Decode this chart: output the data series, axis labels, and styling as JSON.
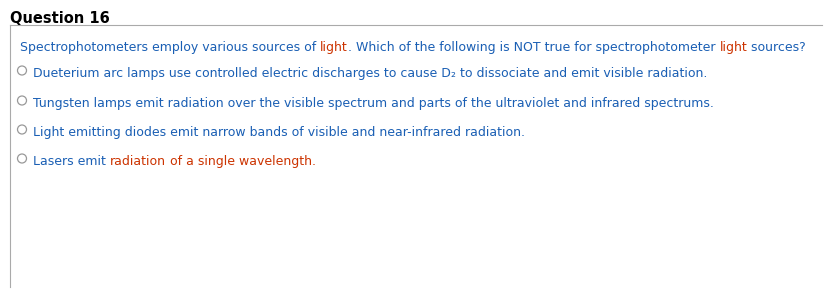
{
  "title": "Question 16",
  "bg_color": "#ffffff",
  "title_color": "#000000",
  "title_fontsize": 10.5,
  "border_color": "#aaaaaa",
  "blue_color": "#1a5fb4",
  "red_color": "#cc3300",
  "dark_blue": "#1a3a8a",
  "font_family": "DejaVu Sans",
  "option_fontsize": 9.0,
  "question_fontsize": 9.0,
  "q_segments": [
    [
      "Spectrophotometers employ various sources of ",
      "#1a5fb4"
    ],
    [
      "light",
      "#cc3300"
    ],
    [
      ". Which of the following is NOT true for spectrophotometer ",
      "#1a5fb4"
    ],
    [
      "light",
      "#cc3300"
    ],
    [
      " sources?",
      "#1a5fb4"
    ]
  ],
  "options": [
    [
      [
        "Dueterium arc lamps use controlled electric discharges to cause D",
        "#1a5fb4"
      ],
      [
        "₂",
        "#1a5fb4"
      ],
      [
        " to dissociate and emit visible radiation.",
        "#1a5fb4"
      ]
    ],
    [
      [
        "Tungsten lamps emit radiation over the visible spectrum and parts of the ultraviolet and infrared spectrums.",
        "#1a5fb4"
      ]
    ],
    [
      [
        "Light emitting diodes emit narrow bands of visible and near-infrared radiation.",
        "#1a5fb4"
      ]
    ],
    [
      [
        "Lasers emit ",
        "#1a5fb4"
      ],
      [
        "radiation",
        "#cc3300"
      ],
      [
        " of a single wavelength.",
        "#cc3300"
      ]
    ]
  ]
}
